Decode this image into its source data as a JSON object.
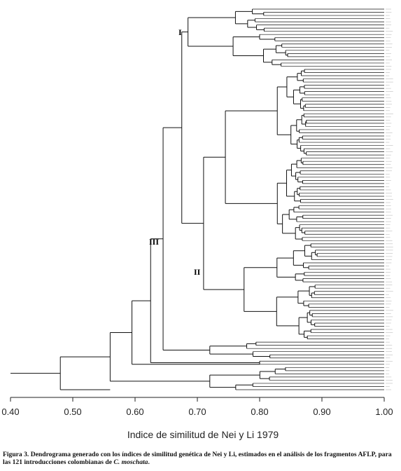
{
  "diagram": {
    "cluster_labels": [
      "I",
      "II",
      "III"
    ],
    "axis": {
      "title": "Indice de similitud de Nei y Li 1979",
      "ticks": [
        "0.40",
        "0.50",
        "0.60",
        "0.70",
        "0.80",
        "0.90",
        "1.00"
      ]
    },
    "leaf_count": 121
  },
  "caption": {
    "prefix": "Figura 3. Dendrograma generado con los índices de similitud genética de Nei y Li, estimados en el análisis de los fragmentos AFLP, para las 121 introducciones colombianas de ",
    "species": "C. moschata",
    "suffix": "."
  }
}
